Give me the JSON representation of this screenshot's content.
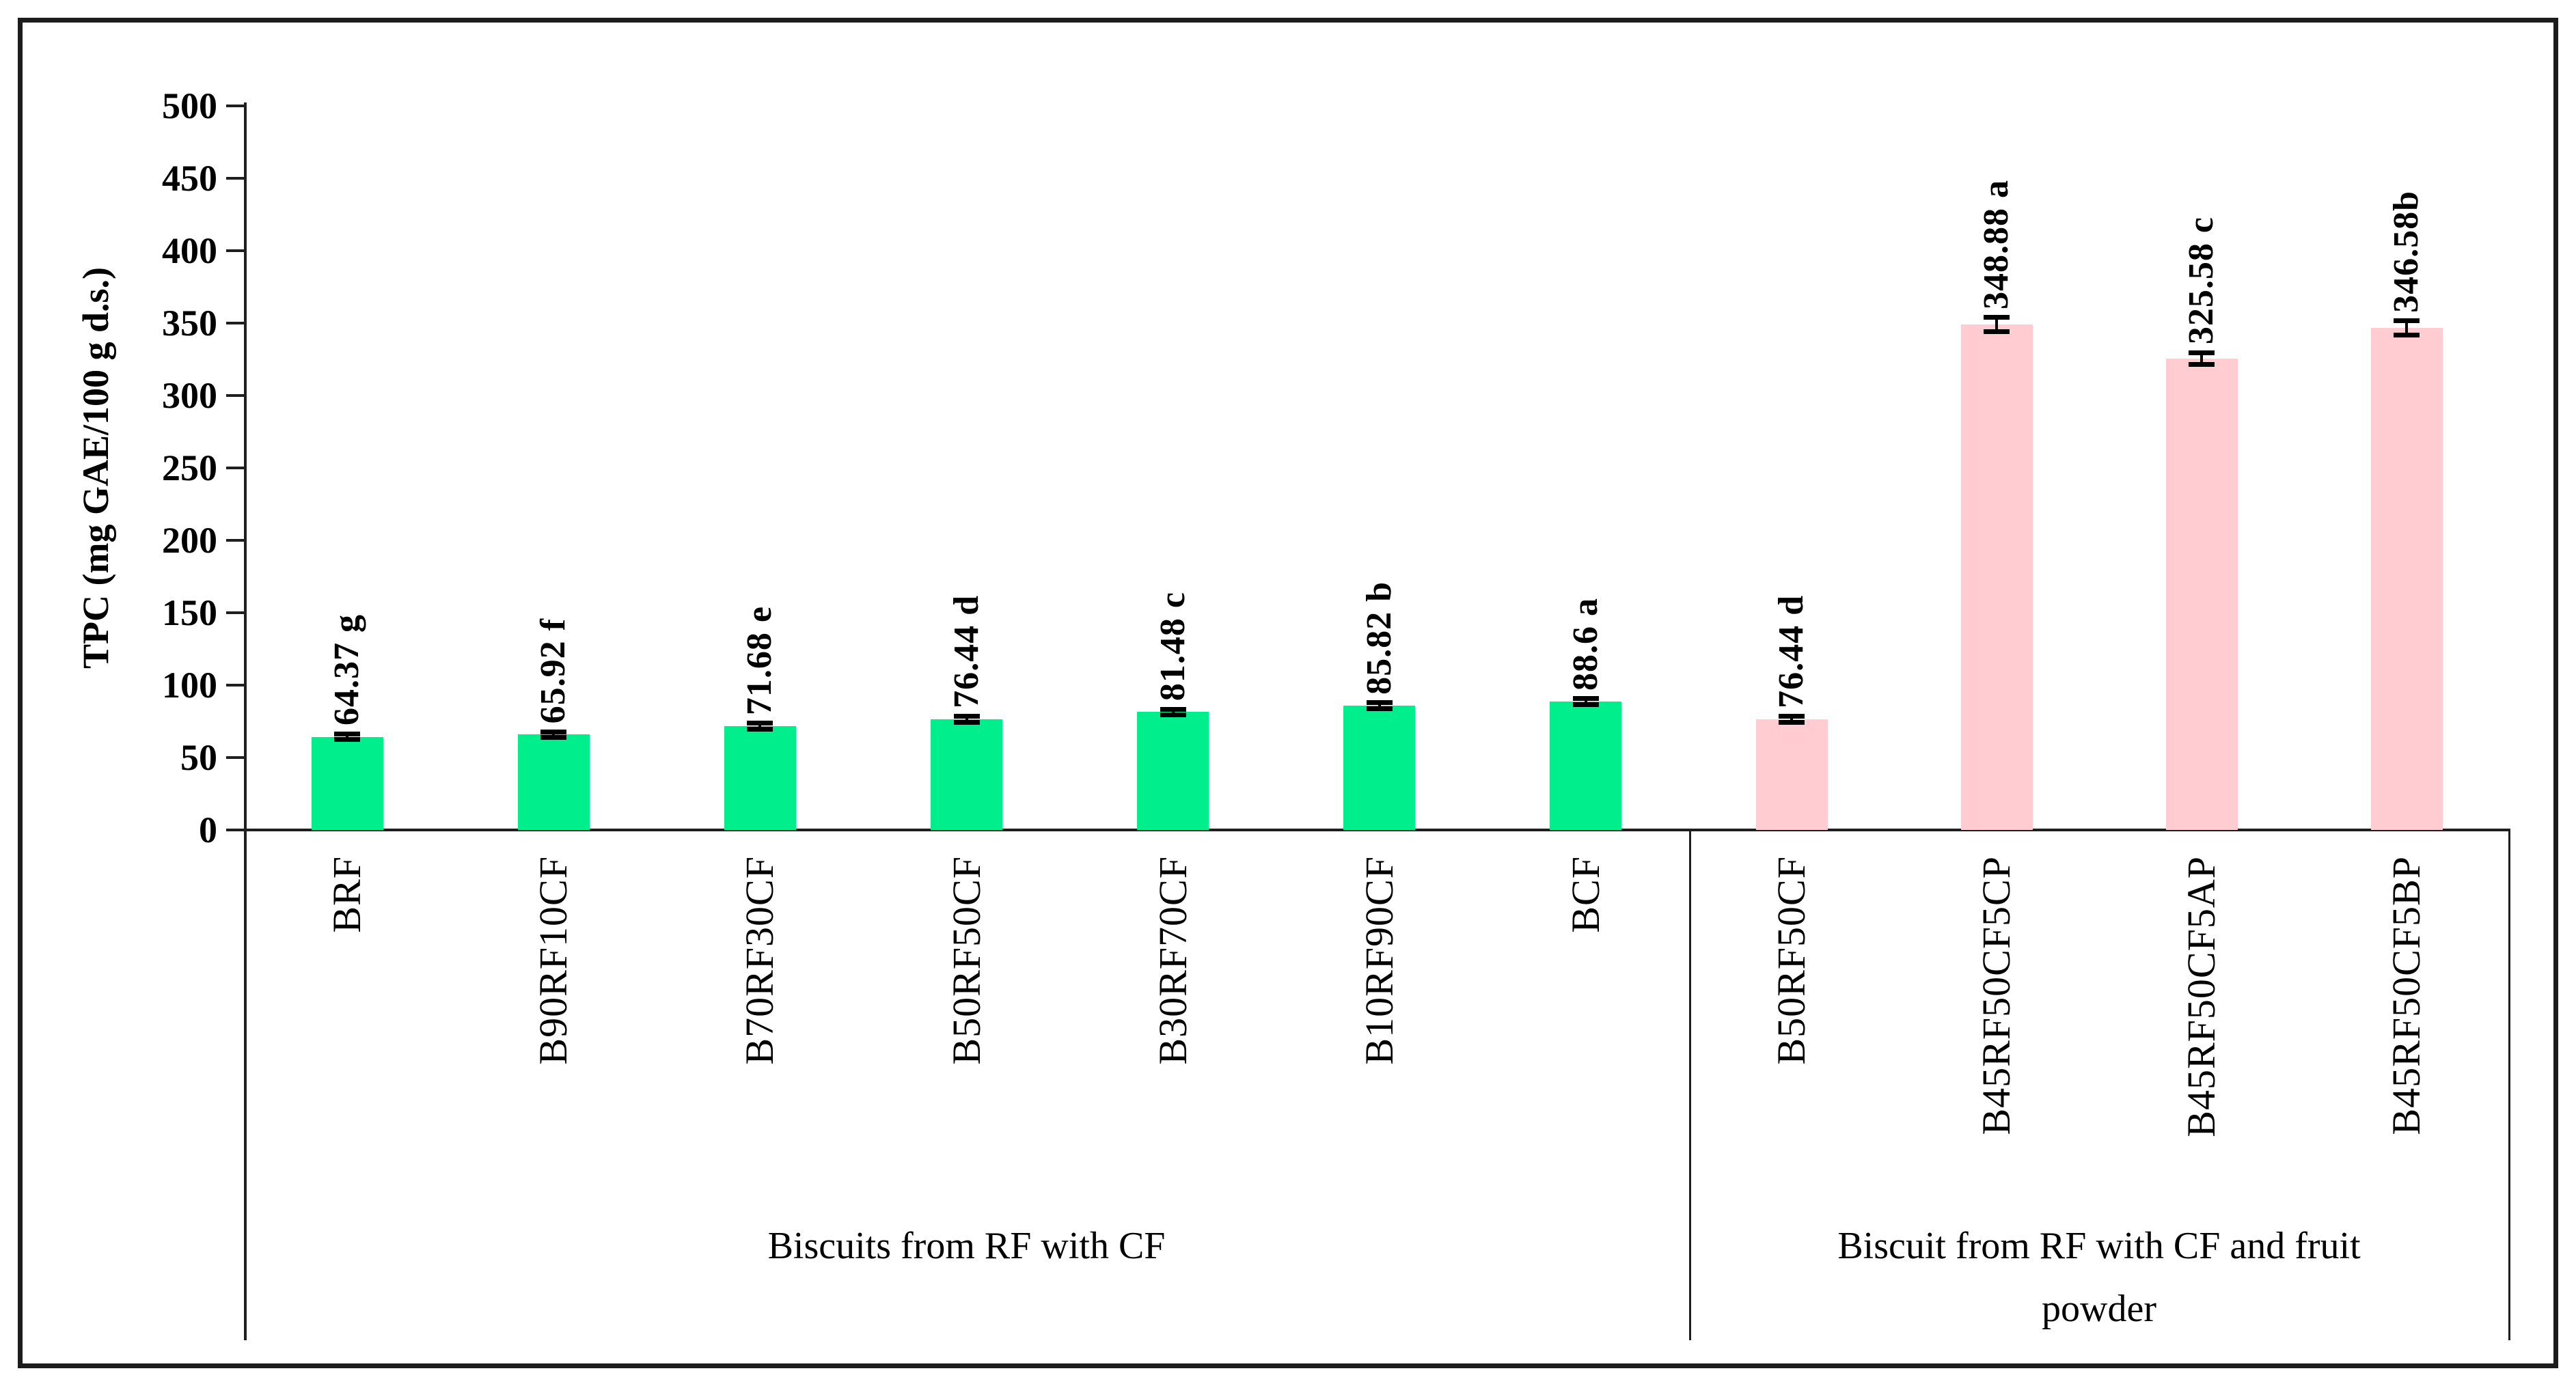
{
  "figure": {
    "background_color": "#ffffff",
    "border_color": "#1c1c1c",
    "axis_color": "#1f1f1f",
    "error_bar_color": "#000000"
  },
  "chart_data": {
    "type": "bar",
    "title": "",
    "xlabel": "",
    "ylabel": "TPC (mg GAE/100 g d.s.)",
    "ylim": [
      0,
      500
    ],
    "ytick_step": 50,
    "ytick_labels": [
      "0",
      "50",
      "100",
      "150",
      "200",
      "250",
      "300",
      "350",
      "400",
      "450",
      "500"
    ],
    "grid": "off",
    "legend": "none",
    "groups": [
      {
        "label_lines": [
          "Biscuits from RF with CF"
        ],
        "bar_color": "#00EE8C",
        "bars": [
          {
            "category": "BRF",
            "value": 64.37,
            "err": 2,
            "label": "64.37 g"
          },
          {
            "category": "B90RF10CF",
            "value": 65.92,
            "err": 2,
            "label": "65.92 f"
          },
          {
            "category": "B70RF30CF",
            "value": 71.68,
            "err": 2,
            "label": "71.68 e"
          },
          {
            "category": "B50RF50CF",
            "value": 76.44,
            "err": 2,
            "label": "76.44 d"
          },
          {
            "category": "B30RF70CF",
            "value": 81.48,
            "err": 2,
            "label": "81.48 c"
          },
          {
            "category": "B10RF90CF",
            "value": 85.82,
            "err": 2,
            "label": "85.82 b"
          },
          {
            "category": "BCF",
            "value": 88.6,
            "err": 2,
            "label": "88.6 a"
          }
        ]
      },
      {
        "label_lines": [
          "Biscuit from RF with CF and fruit",
          "powder"
        ],
        "bar_color": "#FFCDD1",
        "bars": [
          {
            "category": "B50RF50CF",
            "value": 76.44,
            "err": 2,
            "label": "76.44 d"
          },
          {
            "category": "B45RF50CF5CP",
            "value": 348.88,
            "err": 5,
            "label": "348.88 a"
          },
          {
            "category": "B45RF50CF5AP",
            "value": 325.58,
            "err": 4,
            "label": "325.58 c"
          },
          {
            "category": "B45RF50CF5BP",
            "value": 346.58,
            "err": 5,
            "label": "346.58b"
          }
        ]
      }
    ]
  }
}
